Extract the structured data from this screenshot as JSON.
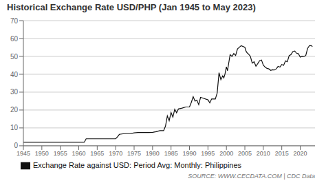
{
  "chart_data": {
    "type": "line",
    "title": "Historical Exchange Rate USD/PHP (Jan 1945 to May 2023)",
    "annotations": [
      "SOURCE: WWW.CECDATA.COM | CDC Data"
    ],
    "x": [
      1945.0,
      1945.5,
      1946.0,
      1947.0,
      1948.0,
      1949.0,
      1950.0,
      1951.0,
      1952.0,
      1953.0,
      1954.0,
      1955.0,
      1956.0,
      1957.0,
      1958.0,
      1959.0,
      1960.0,
      1961.0,
      1961.5,
      1962.0,
      1963.0,
      1964.0,
      1965.0,
      1966.0,
      1967.0,
      1968.0,
      1969.0,
      1970.0,
      1970.5,
      1971.0,
      1972.0,
      1973.0,
      1974.0,
      1975.0,
      1976.0,
      1977.0,
      1978.0,
      1979.0,
      1980.0,
      1981.0,
      1982.0,
      1983.0,
      1983.5,
      1984.0,
      1984.5,
      1985.0,
      1985.5,
      1986.0,
      1986.5,
      1987.0,
      1988.0,
      1989.0,
      1990.0,
      1990.5,
      1991.0,
      1991.5,
      1992.0,
      1992.5,
      1993.0,
      1994.0,
      1995.0,
      1995.5,
      1996.0,
      1997.0,
      1997.5,
      1998.0,
      1998.5,
      1999.0,
      1999.3,
      1999.6,
      2000.0,
      2000.3,
      2001.0,
      2001.5,
      2002.0,
      2002.5,
      2003.0,
      2004.0,
      2005.0,
      2005.3,
      2005.6,
      2006.0,
      2006.5,
      2007.0,
      2007.5,
      2008.0,
      2008.5,
      2009.0,
      2009.5,
      2010.0,
      2010.5,
      2011.0,
      2011.5,
      2012.0,
      2012.5,
      2013.0,
      2013.5,
      2014.0,
      2014.5,
      2015.0,
      2015.5,
      2016.0,
      2016.5,
      2017.0,
      2017.5,
      2018.0,
      2018.5,
      2019.0,
      2019.5,
      2020.0,
      2020.5,
      2021.0,
      2021.5,
      2022.0,
      2022.5,
      2023.0,
      2023.3
    ],
    "series": [
      {
        "name": "Exchange Rate against USD: Period Avg: Monthly: Philippines",
        "color": "#111111",
        "values": [
          2.0,
          2.0,
          2.0,
          2.0,
          2.0,
          2.0,
          2.0,
          2.0,
          2.0,
          2.0,
          2.0,
          2.0,
          2.0,
          2.0,
          2.0,
          2.0,
          2.0,
          2.0,
          2.0,
          3.9,
          3.9,
          3.9,
          3.9,
          3.9,
          3.9,
          3.9,
          3.9,
          3.9,
          5.0,
          6.4,
          6.7,
          6.8,
          6.8,
          7.2,
          7.4,
          7.4,
          7.4,
          7.4,
          7.5,
          7.9,
          8.5,
          8.5,
          11.0,
          16.7,
          14.0,
          18.6,
          16.0,
          20.4,
          18.5,
          20.6,
          21.1,
          21.7,
          21.7,
          24.3,
          27.5,
          25.0,
          25.5,
          23.0,
          27.1,
          26.4,
          25.7,
          24.0,
          26.2,
          26.2,
          29.5,
          40.9,
          37.0,
          39.1,
          38.0,
          40.0,
          44.2,
          42.0,
          51.0,
          50.0,
          51.6,
          50.5,
          54.2,
          56.0,
          55.1,
          53.0,
          52.0,
          51.3,
          50.0,
          46.2,
          47.0,
          44.5,
          46.0,
          47.6,
          48.0,
          45.1,
          44.0,
          43.3,
          43.0,
          42.2,
          42.5,
          42.4,
          43.0,
          44.4,
          44.0,
          45.5,
          45.0,
          47.5,
          47.0,
          50.4,
          51.0,
          52.7,
          53.0,
          51.8,
          51.5,
          49.6,
          50.0,
          49.9,
          50.5,
          54.5,
          56.0,
          56.0,
          55.5
        ]
      }
    ],
    "xlim": [
      1945,
      2024
    ],
    "xticks": [
      1945,
      1950,
      1955,
      1960,
      1965,
      1970,
      1975,
      1980,
      1985,
      1990,
      1995,
      2000,
      2005,
      2010,
      2015,
      2020
    ],
    "ylim": [
      0,
      70
    ],
    "yticks": [
      0,
      10,
      20,
      30,
      40,
      50,
      60,
      70
    ],
    "grid": true,
    "legend": "bottom"
  }
}
